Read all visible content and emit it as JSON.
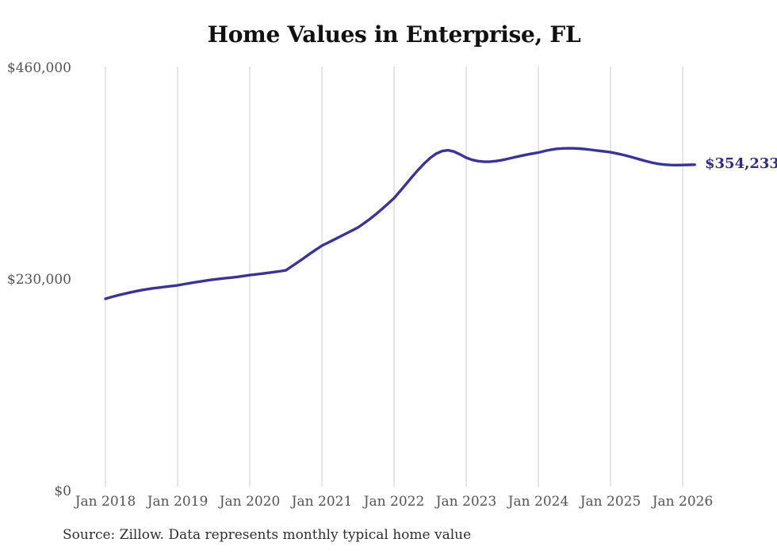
{
  "page": {
    "title": "Home Values in Enterprise, FL",
    "end_label": "$354,233",
    "source_note": "Source: Zillow. Data represents monthly typical home value",
    "colors": {
      "line": "#3a3496",
      "end_label": "#2f2a8b",
      "gridline": "#cccccc",
      "tick_text": "#545454",
      "title_text": "#111111",
      "source_text": "#2e2e2e",
      "background": "#ffffff"
    }
  },
  "chart_data": {
    "type": "line",
    "title": "Home Values in Enterprise, FL",
    "xlabel": "",
    "ylabel": "",
    "ylim": [
      0,
      460000
    ],
    "grid": "vertical-only",
    "legend": false,
    "x_tick_labels": [
      "Jan 2018",
      "Jan 2019",
      "Jan 2020",
      "Jan 2021",
      "Jan 2022",
      "Jan 2023",
      "Jan 2024",
      "Jan 2025",
      "Jan 2026"
    ],
    "y_tick_labels": [
      {
        "label": "$0",
        "value": 0
      },
      {
        "label": "$230,000",
        "value": 230000
      },
      {
        "label": "$460,000",
        "value": 460000
      }
    ],
    "end_annotation": {
      "text": "$354,233",
      "value": 354233
    },
    "source": "Source: Zillow. Data represents monthly typical home value",
    "series": [
      {
        "name": "Monthly typical home value",
        "x": [
          "2018-01",
          "2018-02",
          "2018-03",
          "2018-04",
          "2018-05",
          "2018-06",
          "2018-07",
          "2018-08",
          "2018-09",
          "2018-10",
          "2018-11",
          "2018-12",
          "2019-01",
          "2019-02",
          "2019-03",
          "2019-04",
          "2019-05",
          "2019-06",
          "2019-07",
          "2019-08",
          "2019-09",
          "2019-10",
          "2019-11",
          "2019-12",
          "2020-01",
          "2020-02",
          "2020-03",
          "2020-04",
          "2020-05",
          "2020-06",
          "2020-07",
          "2020-08",
          "2020-09",
          "2020-10",
          "2020-11",
          "2020-12",
          "2021-01",
          "2021-02",
          "2021-03",
          "2021-04",
          "2021-05",
          "2021-06",
          "2021-07",
          "2021-08",
          "2021-09",
          "2021-10",
          "2021-11",
          "2021-12",
          "2022-01",
          "2022-02",
          "2022-03",
          "2022-04",
          "2022-05",
          "2022-06",
          "2022-07",
          "2022-08",
          "2022-09",
          "2022-10",
          "2022-11",
          "2022-12",
          "2023-01",
          "2023-02",
          "2023-03",
          "2023-04",
          "2023-05",
          "2023-06",
          "2023-07",
          "2023-08",
          "2023-09",
          "2023-10",
          "2023-11",
          "2023-12",
          "2024-01",
          "2024-02",
          "2024-03",
          "2024-04",
          "2024-05",
          "2024-06",
          "2024-07",
          "2024-08",
          "2024-09",
          "2024-10",
          "2024-11",
          "2024-12",
          "2025-01",
          "2025-02",
          "2025-03",
          "2025-04",
          "2025-05",
          "2025-06",
          "2025-07",
          "2025-08",
          "2025-09",
          "2025-10",
          "2025-11",
          "2025-12",
          "2026-01",
          "2026-02",
          "2026-03"
        ],
        "values": [
          208500,
          210400,
          212100,
          213700,
          215200,
          216600,
          217900,
          219000,
          219900,
          220700,
          221500,
          222300,
          223100,
          224300,
          225400,
          226500,
          227500,
          228500,
          229400,
          230200,
          230900,
          231600,
          232300,
          233300,
          234300,
          235000,
          235800,
          236600,
          237500,
          238400,
          239400,
          243800,
          248200,
          252700,
          257400,
          261800,
          266200,
          269400,
          272700,
          276000,
          279300,
          282600,
          286000,
          290500,
          295300,
          300500,
          306100,
          311900,
          317900,
          325400,
          333200,
          341000,
          348500,
          355400,
          361500,
          366200,
          369100,
          369900,
          368400,
          365300,
          361800,
          359500,
          358100,
          357400,
          357500,
          358200,
          359300,
          360700,
          362200,
          363700,
          365100,
          366300,
          367400,
          369000,
          370400,
          371400,
          371900,
          372100,
          372000,
          371600,
          371000,
          370200,
          369400,
          368600,
          367800,
          366500,
          365000,
          363400,
          361600,
          359700,
          357900,
          356300,
          355100,
          354300,
          353900,
          353800,
          353900,
          354050,
          354233
        ]
      }
    ]
  }
}
